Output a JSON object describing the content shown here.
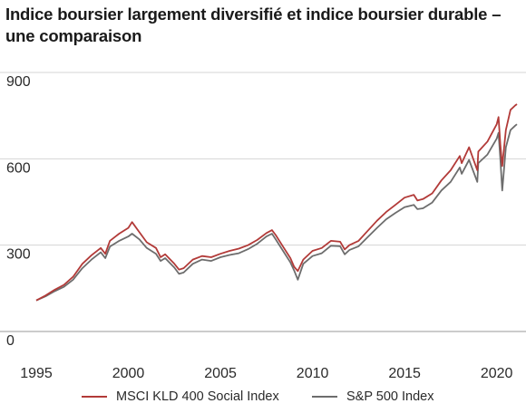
{
  "chart_data": {
    "type": "line",
    "title": "Indice boursier largement diversifié et indice boursier durable – une comparaison",
    "xlabel": "",
    "ylabel": "",
    "xlim": [
      1995,
      2021.1
    ],
    "ylim": [
      0,
      900
    ],
    "x_ticks": [
      1995,
      2000,
      2005,
      2010,
      2015,
      2020
    ],
    "y_ticks": [
      0,
      300,
      600,
      900
    ],
    "grid": "horizontal",
    "legend_position": "bottom",
    "series": [
      {
        "name": "MSCI KLD 400 Social Index",
        "color": "#b23a38",
        "x": [
          1995,
          1995.5,
          1996,
          1996.5,
          1997,
          1997.5,
          1998,
          1998.5,
          1998.75,
          1999,
          1999.5,
          2000,
          2000.2,
          2000.6,
          2001,
          2001.5,
          2001.75,
          2002,
          2002.5,
          2002.75,
          2003,
          2003.5,
          2004,
          2004.5,
          2005,
          2005.5,
          2006,
          2006.5,
          2007,
          2007.5,
          2007.8,
          2008,
          2008.4,
          2008.8,
          2009,
          2009.2,
          2009.5,
          2010,
          2010.5,
          2011,
          2011.5,
          2011.75,
          2012,
          2012.5,
          2013,
          2013.5,
          2014,
          2014.5,
          2015,
          2015.5,
          2015.7,
          2016,
          2016.5,
          2017,
          2017.5,
          2018,
          2018.1,
          2018.5,
          2018.95,
          2019,
          2019.5,
          2020,
          2020.1,
          2020.2,
          2020.3,
          2020.5,
          2020.75,
          2021,
          2021.1
        ],
        "y": [
          108,
          125,
          145,
          162,
          190,
          235,
          265,
          290,
          270,
          315,
          340,
          360,
          380,
          345,
          310,
          290,
          258,
          268,
          235,
          215,
          220,
          250,
          262,
          258,
          270,
          280,
          288,
          300,
          318,
          342,
          352,
          335,
          295,
          255,
          225,
          210,
          250,
          280,
          290,
          315,
          312,
          285,
          300,
          315,
          350,
          385,
          415,
          440,
          465,
          475,
          455,
          460,
          480,
          525,
          560,
          610,
          585,
          640,
          560,
          625,
          660,
          720,
          745,
          650,
          575,
          700,
          770,
          785,
          790
        ]
      },
      {
        "name": "S&P 500 Index",
        "color": "#6d6d6d",
        "x": [
          1995,
          1995.5,
          1996,
          1996.5,
          1997,
          1997.5,
          1998,
          1998.5,
          1998.75,
          1999,
          1999.5,
          2000,
          2000.2,
          2000.6,
          2001,
          2001.5,
          2001.75,
          2002,
          2002.5,
          2002.75,
          2003,
          2003.5,
          2004,
          2004.5,
          2005,
          2005.5,
          2006,
          2006.5,
          2007,
          2007.5,
          2007.8,
          2008,
          2008.4,
          2008.8,
          2009,
          2009.2,
          2009.5,
          2010,
          2010.5,
          2011,
          2011.5,
          2011.75,
          2012,
          2012.5,
          2013,
          2013.5,
          2014,
          2014.5,
          2015,
          2015.5,
          2015.7,
          2016,
          2016.5,
          2017,
          2017.5,
          2018,
          2018.1,
          2018.5,
          2018.95,
          2019,
          2019.5,
          2020,
          2020.1,
          2020.2,
          2020.3,
          2020.5,
          2020.75,
          2021,
          2021.1
        ],
        "y": [
          108,
          122,
          140,
          155,
          180,
          220,
          250,
          275,
          255,
          295,
          315,
          330,
          340,
          320,
          290,
          270,
          245,
          255,
          222,
          200,
          205,
          235,
          250,
          245,
          258,
          266,
          272,
          286,
          305,
          330,
          340,
          320,
          280,
          240,
          212,
          180,
          235,
          262,
          272,
          298,
          296,
          268,
          283,
          296,
          328,
          360,
          390,
          412,
          432,
          440,
          425,
          428,
          448,
          490,
          520,
          570,
          548,
          596,
          520,
          585,
          615,
          670,
          690,
          600,
          490,
          640,
          700,
          715,
          720
        ]
      }
    ]
  }
}
